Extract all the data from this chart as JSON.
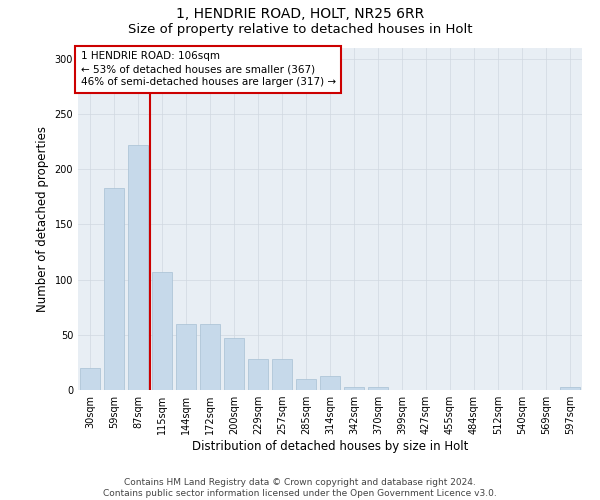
{
  "title": "1, HENDRIE ROAD, HOLT, NR25 6RR",
  "subtitle": "Size of property relative to detached houses in Holt",
  "xlabel": "Distribution of detached houses by size in Holt",
  "ylabel": "Number of detached properties",
  "categories": [
    "30sqm",
    "59sqm",
    "87sqm",
    "115sqm",
    "144sqm",
    "172sqm",
    "200sqm",
    "229sqm",
    "257sqm",
    "285sqm",
    "314sqm",
    "342sqm",
    "370sqm",
    "399sqm",
    "427sqm",
    "455sqm",
    "484sqm",
    "512sqm",
    "540sqm",
    "569sqm",
    "597sqm"
  ],
  "values": [
    20,
    183,
    222,
    107,
    60,
    60,
    47,
    28,
    28,
    10,
    13,
    3,
    3,
    0,
    0,
    0,
    0,
    0,
    0,
    0,
    3
  ],
  "bar_color": "#c6d9ea",
  "bar_edge_color": "#a8c0d4",
  "grid_color": "#d0d8e0",
  "annotation_line_color": "#cc0000",
  "annotation_box_text": "1 HENDRIE ROAD: 106sqm\n← 53% of detached houses are smaller (367)\n46% of semi-detached houses are larger (317) →",
  "annotation_box_color": "#ffffff",
  "annotation_box_edge_color": "#cc0000",
  "footnote": "Contains HM Land Registry data © Crown copyright and database right 2024.\nContains public sector information licensed under the Open Government Licence v3.0.",
  "ylim": [
    0,
    310
  ],
  "background_color": "#e8eef4",
  "title_fontsize": 10,
  "subtitle_fontsize": 9.5,
  "axis_fontsize": 8.5,
  "tick_fontsize": 7,
  "footnote_fontsize": 6.5,
  "ann_fontsize": 7.5
}
